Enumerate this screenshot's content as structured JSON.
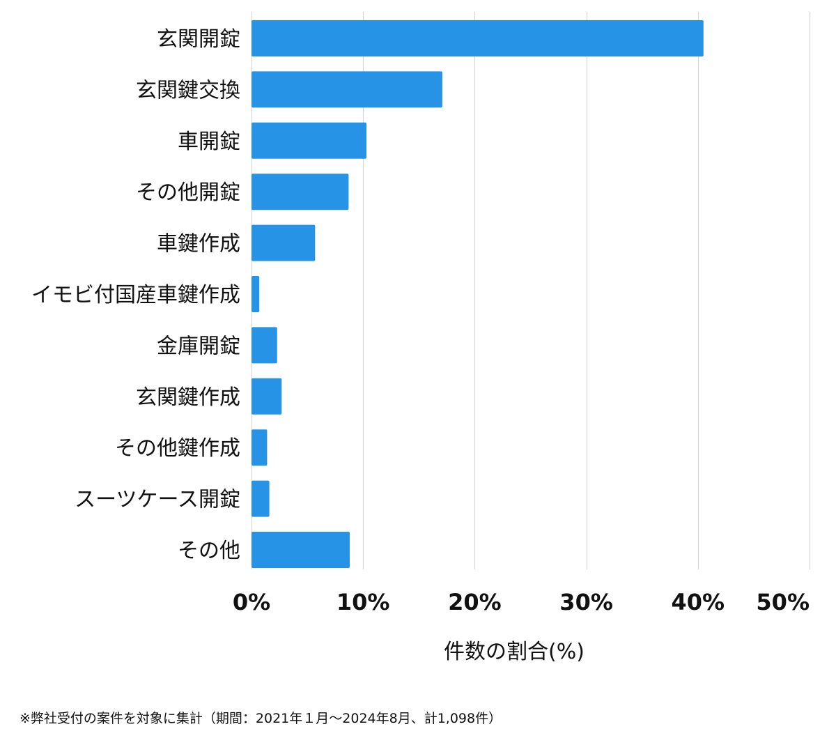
{
  "chart_data": {
    "type": "bar",
    "orientation": "horizontal",
    "categories": [
      "玄関開錠",
      "玄関鍵交換",
      "車開錠",
      "その他開錠",
      "車鍵作成",
      "イモビ付国産車鍵作成",
      "金庫開錠",
      "玄関鍵作成",
      "その他鍵作成",
      "スーツケース開錠",
      "その他"
    ],
    "values": [
      40.5,
      17.1,
      10.3,
      8.7,
      5.7,
      0.7,
      2.3,
      2.7,
      1.4,
      1.6,
      8.8
    ],
    "xlabel": "件数の割合(%)",
    "ylabel": "",
    "xlim": [
      0,
      50
    ],
    "xticks": [
      "0%",
      "10%",
      "20%",
      "30%",
      "40%",
      "50%"
    ],
    "grid": true,
    "colors": {
      "bar": "#2693e6",
      "grid": "#d6d6d6"
    }
  },
  "footnote": "※弊社受付の案件を対象に集計（期間：2021年１月〜2024年8月、計1,098件）"
}
